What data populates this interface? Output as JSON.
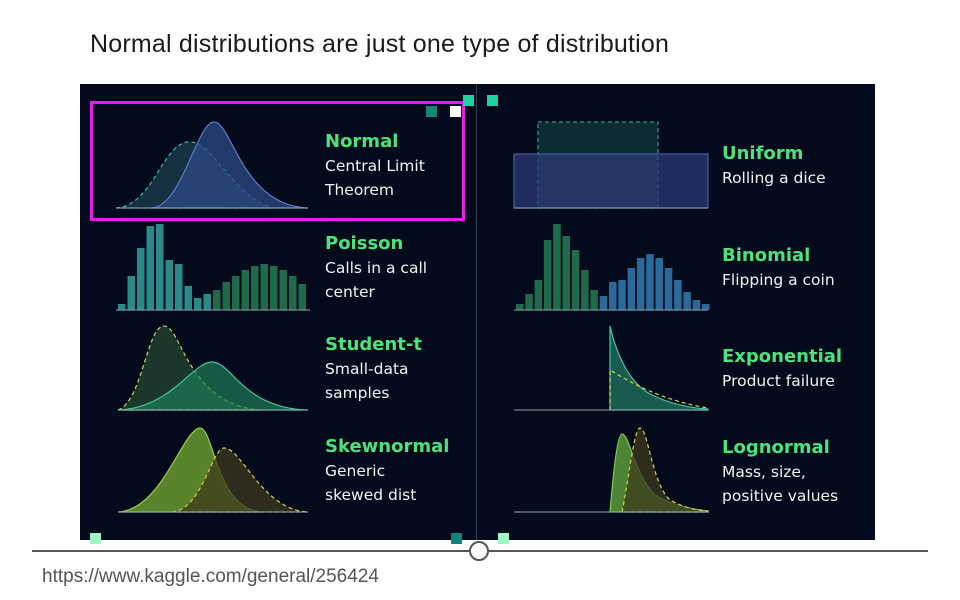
{
  "title": "Normal distributions are just one type of distribution",
  "source_url": "https://www.kaggle.com/general/256424",
  "colors": {
    "panel_bg": "#030a1c",
    "name_green": "#4be37a",
    "highlight": "#e81ce8",
    "teal_square": "#1dd1a1"
  },
  "distributions": [
    {
      "name": "Normal",
      "desc1": "Central Limit",
      "desc2": "Theorem"
    },
    {
      "name": "Poisson",
      "desc1": "Calls in a call",
      "desc2": "center"
    },
    {
      "name": "Student-t",
      "desc1": "Small-data",
      "desc2": "samples"
    },
    {
      "name": "Skewnormal",
      "desc1": "Generic",
      "desc2": "skewed dist"
    },
    {
      "name": "Uniform",
      "desc1": "Rolling a dice",
      "desc2": ""
    },
    {
      "name": "Binomial",
      "desc1": "Flipping a coin",
      "desc2": ""
    },
    {
      "name": "Exponential",
      "desc1": "Product failure",
      "desc2": ""
    },
    {
      "name": "Lognormal",
      "desc1": "Mass, size,",
      "desc2": "positive values"
    }
  ]
}
